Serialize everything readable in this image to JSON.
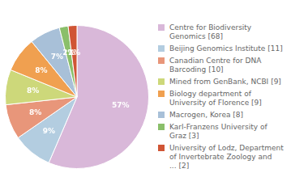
{
  "chart_data": {
    "type": "pie",
    "categories": [
      "Centre for Biodiversity\nGenomics [68]",
      "Beijing Genomics Institute [11]",
      "Canadian Centre for DNA\nBarcoding [10]",
      "Mined from GenBank, NCBI [9]",
      "Biology department of\nUniversity of Florence [9]",
      "Macrogen, Korea [8]",
      "Karl-Franzens University of\nGraz [3]",
      "University of Lodz, Department\nof Invertebrate Zoology and\n... [2]"
    ],
    "values": [
      57,
      9,
      8,
      8,
      8,
      7,
      2,
      2
    ],
    "value_labels": [
      "57%",
      "9%",
      "8%",
      "8%",
      "8%",
      "7%",
      "2%",
      "2%"
    ],
    "colors": [
      "#d9b8d9",
      "#b3cde0",
      "#e8967a",
      "#cdd87a",
      "#f0a050",
      "#a8c0d8",
      "#8abf6a",
      "#d05535"
    ],
    "data_labels": true,
    "legend": "right"
  }
}
